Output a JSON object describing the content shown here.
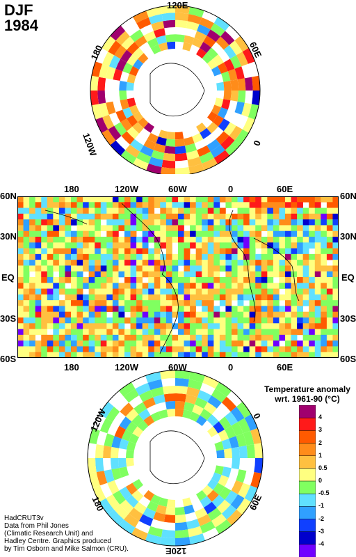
{
  "header": {
    "season": "DJF",
    "year": "1984"
  },
  "north_polar": {
    "labels": {
      "top": "120E",
      "right": "60E",
      "bottom_right": "0",
      "left": "180",
      "bottom_left": "120W"
    }
  },
  "global_map": {
    "top_lon_labels": [
      "180",
      "120W",
      "60W",
      "0",
      "60E"
    ],
    "bottom_lon_labels": [
      "180",
      "120W",
      "60W",
      "0",
      "60E"
    ],
    "lat_labels": [
      "60N",
      "30N",
      "EQ",
      "30S",
      "60S"
    ]
  },
  "south_polar": {
    "labels": {
      "top_left": "120W",
      "top_right": "0",
      "bottom_left": "180",
      "bottom_right": "60E",
      "bottom": "120E"
    }
  },
  "legend": {
    "title_line1": "Temperature anomaly",
    "title_line2": "wrt. 1961-90  (°C)",
    "tick_labels": [
      "4",
      "3",
      "2",
      "1",
      "0.5",
      "0",
      "-0.5",
      "-1",
      "-2",
      "-3",
      "-4"
    ],
    "colors": [
      "#a0006e",
      "#ff1a1a",
      "#ff5a00",
      "#ff8c1a",
      "#ffc040",
      "#ffff80",
      "#80ff60",
      "#60e0ff",
      "#30a0ff",
      "#1040ff",
      "#0000cc",
      "#7000ff"
    ]
  },
  "credits": [
    "HadCRUT3v",
    "Data from Phil Jones",
    "(Climatic Research Unit) and",
    "Hadley Centre.  Graphics produced",
    "by Tim Osborn and Mike Salmon (CRU)."
  ]
}
